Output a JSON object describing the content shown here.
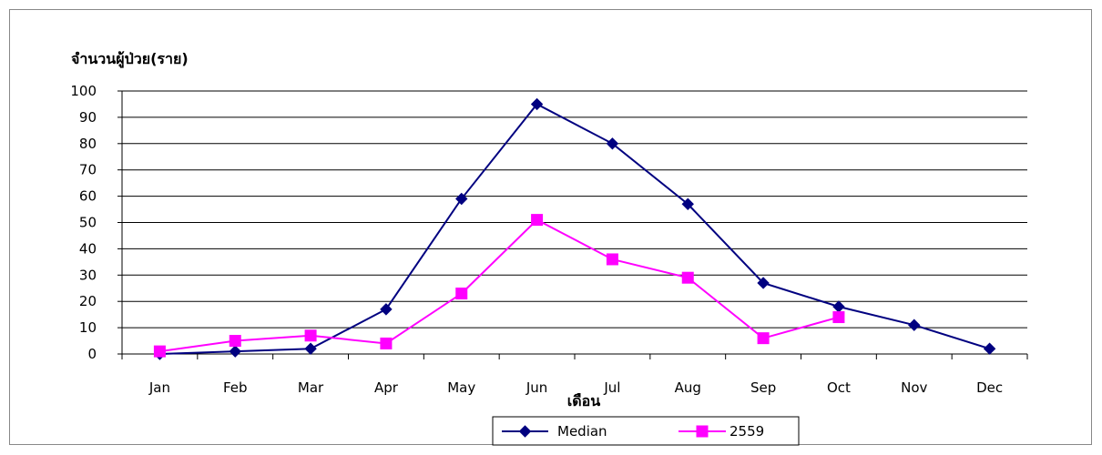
{
  "chart_data": {
    "type": "line",
    "ylabel": "จำนวนผู้ป่วย(ราย)",
    "xlabel": "เดือน",
    "categories": [
      "Jan",
      "Feb",
      "Mar",
      "Apr",
      "May",
      "Jun",
      "Jul",
      "Aug",
      "Sep",
      "Oct",
      "Nov",
      "Dec"
    ],
    "ylim": [
      0,
      100
    ],
    "yticks": [
      0,
      10,
      20,
      30,
      40,
      50,
      60,
      70,
      80,
      90,
      100
    ],
    "grid": true,
    "legend_position": "bottom-center",
    "series": [
      {
        "name": "Median",
        "color": "#000080",
        "marker": "diamond",
        "values": [
          0,
          1,
          2,
          17,
          59,
          95,
          80,
          57,
          27,
          18,
          11,
          2
        ]
      },
      {
        "name": "2559",
        "color": "#ff00ff",
        "marker": "square",
        "values": [
          1,
          5,
          7,
          4,
          23,
          51,
          36,
          29,
          6,
          14,
          null,
          null
        ]
      }
    ]
  }
}
